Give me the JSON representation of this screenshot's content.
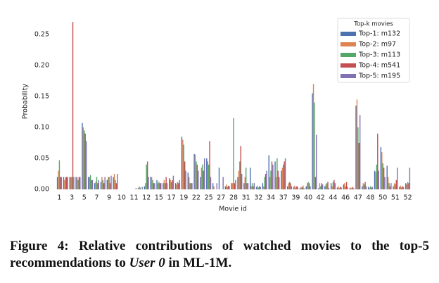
{
  "chart_data": {
    "type": "grouped_bar",
    "xlabel": "Movie id",
    "ylabel": "Probability",
    "categories": [
      "1",
      null,
      "3",
      null,
      "5",
      null,
      "7",
      null,
      "9",
      null,
      "10",
      null,
      "11",
      null,
      "12",
      null,
      "15",
      null,
      "17",
      null,
      "19",
      null,
      "22",
      null,
      "25",
      null,
      "27",
      null,
      "28",
      null,
      "31",
      null,
      "32",
      null,
      "34",
      null,
      "37",
      null,
      "39",
      null,
      "40",
      null,
      "42",
      null,
      "44",
      null,
      "46",
      null,
      "47",
      null,
      "48",
      null,
      "50",
      null,
      "51",
      null,
      "52"
    ],
    "ylim": [
      0,
      0.285
    ],
    "yticks": [
      {
        "value": 0,
        "label": "0.00"
      },
      0.05,
      {
        "value": 0.1,
        "label": "0.10"
      },
      0.15,
      {
        "value": 0.2,
        "label": "0.20"
      },
      0.25
    ],
    "grid": false,
    "legend": {
      "title": "Top-k movies",
      "loc": "upper right"
    },
    "series": [
      {
        "name": "Top-1: m132",
        "color": "#4c72b0",
        "values": [
          0.02,
          0.02,
          0.02,
          0.02,
          0.107,
          0.02,
          0.01,
          0.012,
          0.015,
          0.02,
          0,
          0,
          0,
          0.002,
          0.005,
          0.02,
          0.015,
          0.01,
          0.018,
          0.01,
          0.085,
          0.027,
          0.057,
          0.02,
          0.05,
          0.01,
          0.035,
          0.005,
          0.01,
          0.02,
          0.01,
          0.035,
          0.004,
          0.01,
          0.055,
          0.045,
          0.03,
          0.005,
          0.004,
          0.002,
          0.005,
          0.155,
          0.002,
          0.005,
          0.01,
          0.003,
          0.008,
          0.002,
          0.135,
          0.005,
          0.004,
          0.03,
          0.068,
          0.038,
          0.005,
          0.004,
          0.01
        ]
      },
      {
        "name": "Top-2: m97",
        "color": "#dd8452",
        "values": [
          0.03,
          0.015,
          0.02,
          0.02,
          0.1,
          0.02,
          0.012,
          0.02,
          0.02,
          0.025,
          0,
          0,
          0,
          0.005,
          0.01,
          0.02,
          0.01,
          0.015,
          0.015,
          0.008,
          0.08,
          0.02,
          0.056,
          0.035,
          0.045,
          0.005,
          0,
          0.008,
          0.01,
          0.03,
          0.02,
          0.005,
          0.006,
          0.005,
          0.02,
          0.02,
          0.035,
          0.01,
          0.006,
          0.004,
          0.01,
          0.17,
          0.01,
          0.008,
          0.005,
          0.005,
          0.01,
          0.003,
          0.145,
          0.01,
          0.002,
          0.028,
          0.06,
          0.02,
          0.01,
          0.006,
          0.008
        ]
      },
      {
        "name": "Top-3: m113",
        "color": "#55a868",
        "values": [
          0.047,
          0.02,
          0.02,
          0.015,
          0.095,
          0.023,
          0.02,
          0.015,
          0.02,
          0.015,
          0,
          0,
          0,
          0.003,
          0.04,
          0.015,
          0.012,
          0.01,
          0.012,
          0.012,
          0.072,
          0.01,
          0.045,
          0.04,
          0.04,
          0,
          0,
          0.004,
          0.115,
          0.045,
          0.035,
          0.01,
          0.003,
          0.02,
          0.03,
          0.05,
          0.04,
          0.012,
          0.003,
          0.003,
          0.012,
          0.14,
          0.005,
          0.01,
          0.012,
          0.002,
          0.005,
          0.002,
          0.1,
          0.008,
          0.005,
          0.04,
          0.042,
          0.01,
          0.008,
          0.003,
          0.012
        ]
      },
      {
        "name": "Top-4: m541",
        "color": "#c44e52",
        "values": [
          0.02,
          0.02,
          0.27,
          0.02,
          0.09,
          0.015,
          0.01,
          0.01,
          0.01,
          0.01,
          0,
          0,
          0,
          0,
          0.045,
          0.01,
          0.01,
          0.02,
          0.015,
          0.01,
          0.045,
          0.01,
          0.04,
          0.03,
          0.078,
          0,
          0,
          0.006,
          0.01,
          0.07,
          0.01,
          0.005,
          0.005,
          0.025,
          0.045,
          0.03,
          0.045,
          0.01,
          0.005,
          0.006,
          0.01,
          0.02,
          0.01,
          0.012,
          0.015,
          0.004,
          0.012,
          0.004,
          0.075,
          0.012,
          0.003,
          0.09,
          0.035,
          0.005,
          0.015,
          0.005,
          0.01
        ]
      },
      {
        "name": "Top-5: m195",
        "color": "#8172b3",
        "values": [
          0.02,
          0.02,
          0.02,
          0.02,
          0.078,
          0.015,
          0.015,
          0.02,
          0.022,
          0.025,
          0,
          0,
          0.002,
          0.004,
          0.02,
          0.01,
          0.01,
          0.01,
          0.022,
          0.015,
          0.03,
          0.01,
          0.03,
          0.05,
          0.02,
          0.01,
          0.02,
          0.005,
          0.015,
          0.025,
          0.01,
          0.01,
          0.004,
          0.03,
          0.04,
          0.02,
          0.05,
          0.005,
          0.004,
          0.002,
          0.005,
          0.088,
          0.008,
          0.002,
          0.01,
          0.003,
          0.004,
          0.002,
          0.12,
          0.005,
          0.004,
          0.03,
          0.02,
          0.01,
          0.035,
          0.004,
          0.035
        ]
      }
    ]
  },
  "caption": {
    "label": "Figure 4:",
    "text_before": "Relative contributions of watched movies to the top-5 recommendations to",
    "emphasis": "User 0",
    "text_after": "in ML-1M."
  }
}
